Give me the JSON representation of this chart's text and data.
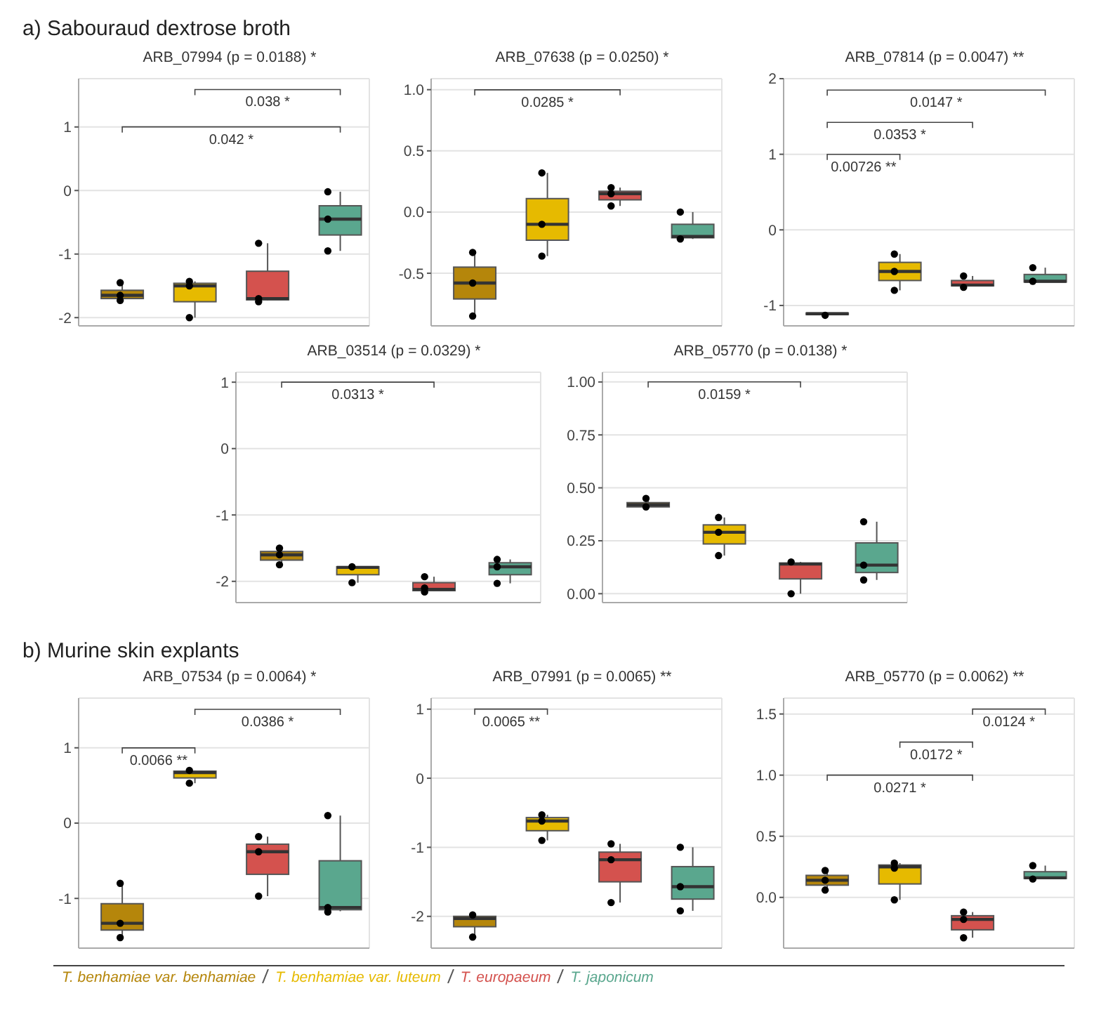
{
  "chart_data": [
    {
      "type": "box",
      "subtitle": "a) Sabouraud dextrose broth",
      "title": "ARB_07994 (p = 0.0188) *",
      "categories": [
        null,
        null,
        null,
        null
      ],
      "tick_labels": "y",
      "grid": true,
      "ylim": [
        -2.13,
        1.76
      ],
      "yticks": [
        -2,
        -1,
        0,
        1
      ],
      "series": [
        {
          "type": "box",
          "color": "#b5860b",
          "boxes": [
            {
              "low": -1.73,
              "q1": -1.7,
              "median": -1.65,
              "q3": -1.57,
              "high": -1.45
            },
            null,
            null,
            null
          ]
        },
        {
          "type": "box",
          "color": "#e6ba00",
          "boxes": [
            null,
            {
              "low": -2.0,
              "q1": -1.75,
              "median": -1.5,
              "q3": -1.46,
              "high": -1.43
            },
            null,
            null
          ]
        },
        {
          "type": "box",
          "color": "#d4524e",
          "boxes": [
            null,
            null,
            {
              "low": -1.73,
              "q1": -1.72,
              "median": -1.7,
              "q3": -1.27,
              "high": -0.83
            },
            null
          ]
        },
        {
          "type": "box",
          "color": "#5aa78e",
          "boxes": [
            null,
            null,
            null,
            {
              "low": -0.95,
              "q1": -0.7,
              "median": -0.45,
              "q3": -0.24,
              "high": -0.02
            }
          ]
        },
        {
          "type": "scatter",
          "color": "#000000",
          "marker": "circle",
          "values": [
            -1.45,
            -1.43,
            -0.83,
            -0.02
          ]
        },
        {
          "type": "scatter",
          "color": "#000000",
          "marker": "circle",
          "values": [
            -1.65,
            -1.5,
            -1.7,
            -0.45
          ]
        },
        {
          "type": "scatter",
          "color": "#000000",
          "marker": "circle",
          "values": [
            -1.73,
            -2.0,
            -1.75,
            -0.95
          ]
        }
      ],
      "annotations": [
        "0.038 *",
        "0.042 *"
      ]
    },
    {
      "type": "box",
      "title": "ARB_07638 (p = 0.0250) *",
      "categories": [
        null,
        null,
        null,
        null
      ],
      "tick_labels": "y",
      "grid": true,
      "ylim": [
        -0.93,
        1.09
      ],
      "yticks": [
        -0.5,
        {
          "value": 0,
          "label": "0.0"
        },
        0.5,
        {
          "value": 1,
          "label": "1.0"
        }
      ],
      "series": [
        {
          "type": "box",
          "color": "#b5860b",
          "boxes": [
            {
              "low": -0.85,
              "q1": -0.71,
              "median": -0.58,
              "q3": -0.45,
              "high": -0.33
            },
            null,
            null,
            null
          ]
        },
        {
          "type": "box",
          "color": "#e6ba00",
          "boxes": [
            null,
            {
              "low": -0.36,
              "q1": -0.23,
              "median": -0.1,
              "q3": 0.11,
              "high": 0.32
            },
            null,
            null
          ]
        },
        {
          "type": "box",
          "color": "#d4524e",
          "boxes": [
            null,
            null,
            {
              "low": 0.05,
              "q1": 0.1,
              "median": 0.15,
              "q3": 0.17,
              "high": 0.2
            },
            null
          ]
        },
        {
          "type": "box",
          "color": "#5aa78e",
          "boxes": [
            null,
            null,
            null,
            {
              "low": -0.22,
              "q1": -0.21,
              "median": -0.2,
              "q3": -0.1,
              "high": 0
            }
          ]
        },
        {
          "type": "scatter",
          "color": "#000000",
          "marker": "circle",
          "values": [
            -0.33,
            0.32,
            0.2,
            0
          ]
        },
        {
          "type": "scatter",
          "color": "#000000",
          "marker": "circle",
          "values": [
            -0.58,
            -0.1,
            0.15,
            null
          ]
        },
        {
          "type": "scatter",
          "color": "#000000",
          "marker": "circle",
          "values": [
            -0.85,
            -0.36,
            0.05,
            -0.22
          ]
        }
      ],
      "annotations": [
        "0.0285 *"
      ]
    },
    {
      "type": "box",
      "title": "ARB_07814 (p = 0.0047) **",
      "categories": [
        null,
        null,
        null,
        null
      ],
      "tick_labels": "y",
      "grid": true,
      "ylim": [
        -1.27,
        2.0
      ],
      "yticks": [
        -1,
        0,
        1,
        2
      ],
      "series": [
        {
          "type": "box",
          "color": "#b5860b",
          "boxes": [
            {
              "low": -1.12,
              "q1": -1.12,
              "median": -1.11,
              "q3": -1.1,
              "high": -1.1
            },
            null,
            null,
            null
          ]
        },
        {
          "type": "box",
          "color": "#e6ba00",
          "boxes": [
            null,
            {
              "low": -0.8,
              "q1": -0.67,
              "median": -0.55,
              "q3": -0.43,
              "high": -0.32
            },
            null,
            null
          ]
        },
        {
          "type": "box",
          "color": "#d4524e",
          "boxes": [
            null,
            null,
            {
              "low": -0.75,
              "q1": -0.74,
              "median": -0.73,
              "q3": -0.67,
              "high": -0.61
            },
            null
          ]
        },
        {
          "type": "box",
          "color": "#5aa78e",
          "boxes": [
            null,
            null,
            null,
            {
              "low": -0.69,
              "q1": -0.69,
              "median": -0.68,
              "q3": -0.59,
              "high": -0.5
            }
          ]
        },
        {
          "type": "scatter",
          "color": "#000000",
          "marker": "circle",
          "values": [
            null,
            -0.32,
            -0.61,
            -0.5
          ]
        },
        {
          "type": "scatter",
          "color": "#000000",
          "marker": "circle",
          "values": [
            null,
            -0.55,
            null,
            -0.68
          ]
        },
        {
          "type": "scatter",
          "color": "#000000",
          "marker": "circle",
          "values": [
            -1.13,
            -0.8,
            -0.76,
            null
          ]
        }
      ],
      "annotations": [
        "0.0147 *",
        "0.0353 *",
        "0.00726 **"
      ]
    },
    {
      "type": "box",
      "title": "ARB_03514 (p = 0.0329) *",
      "categories": [
        null,
        null,
        null,
        null
      ],
      "tick_labels": "y",
      "grid": true,
      "ylim": [
        -2.32,
        1.15
      ],
      "yticks": [
        -2,
        -1,
        0,
        1
      ],
      "series": [
        {
          "type": "box",
          "color": "#b5860b",
          "boxes": [
            {
              "low": -1.75,
              "q1": -1.68,
              "median": -1.6,
              "q3": -1.55,
              "high": -1.5
            },
            null,
            null,
            null
          ]
        },
        {
          "type": "box",
          "color": "#e6ba00",
          "boxes": [
            null,
            {
              "low": -2.02,
              "q1": -1.9,
              "median": -1.79,
              "q3": -1.78,
              "high": -1.78
            },
            null,
            null
          ]
        },
        {
          "type": "box",
          "color": "#d4524e",
          "boxes": [
            null,
            null,
            {
              "low": -2.15,
              "q1": -2.14,
              "median": -2.12,
              "q3": -2.02,
              "high": -1.93
            },
            null
          ]
        },
        {
          "type": "box",
          "color": "#5aa78e",
          "boxes": [
            null,
            null,
            null,
            {
              "low": -2.03,
              "q1": -1.9,
              "median": -1.78,
              "q3": -1.72,
              "high": -1.67
            }
          ]
        },
        {
          "type": "scatter",
          "color": "#000000",
          "marker": "circle",
          "values": [
            -1.5,
            -1.78,
            -1.93,
            -1.67
          ]
        },
        {
          "type": "scatter",
          "color": "#000000",
          "marker": "circle",
          "values": [
            -1.6,
            null,
            -2.1,
            -1.78
          ]
        },
        {
          "type": "scatter",
          "color": "#000000",
          "marker": "circle",
          "values": [
            -1.75,
            -2.02,
            -2.16,
            -2.03
          ]
        }
      ],
      "annotations": [
        "0.0313 *"
      ]
    },
    {
      "type": "box",
      "title": "ARB_05770 (p = 0.0138) *",
      "categories": [
        null,
        null,
        null,
        null
      ],
      "tick_labels": "y",
      "grid": true,
      "ylim": [
        -0.042,
        1.046
      ],
      "yticks": [
        {
          "value": 0,
          "label": "0.00"
        },
        0.25,
        {
          "value": 0.5,
          "label": "0.50"
        },
        0.75,
        {
          "value": 1,
          "label": "1.00"
        }
      ],
      "series": [
        {
          "type": "box",
          "color": "#b5860b",
          "boxes": [
            {
              "low": 0.41,
              "q1": 0.41,
              "median": 0.42,
              "q3": 0.43,
              "high": 0.45
            },
            null,
            null,
            null
          ]
        },
        {
          "type": "box",
          "color": "#e6ba00",
          "boxes": [
            null,
            {
              "low": 0.18,
              "q1": 0.235,
              "median": 0.29,
              "q3": 0.325,
              "high": 0.36
            },
            null,
            null
          ]
        },
        {
          "type": "box",
          "color": "#d4524e",
          "boxes": [
            null,
            null,
            {
              "low": 0,
              "q1": 0.07,
              "median": 0.14,
              "q3": 0.145,
              "high": 0.15
            },
            null
          ]
        },
        {
          "type": "box",
          "color": "#5aa78e",
          "boxes": [
            null,
            null,
            null,
            {
              "low": 0.065,
              "q1": 0.1,
              "median": 0.135,
              "q3": 0.24,
              "high": 0.34
            }
          ]
        },
        {
          "type": "scatter",
          "color": "#000000",
          "marker": "circle",
          "values": [
            0.45,
            0.36,
            0.15,
            0.34
          ]
        },
        {
          "type": "scatter",
          "color": "#000000",
          "marker": "circle",
          "values": [
            null,
            0.29,
            null,
            0.135
          ]
        },
        {
          "type": "scatter",
          "color": "#000000",
          "marker": "circle",
          "values": [
            0.41,
            0.18,
            0,
            0.065
          ]
        }
      ],
      "annotations": [
        "0.0159 *"
      ]
    },
    {
      "type": "box",
      "subtitle": "b) Murine skin explants",
      "title": "ARB_07534 (p = 0.0064) *",
      "categories": [
        null,
        null,
        null,
        null
      ],
      "tick_labels": "y",
      "grid": true,
      "ylim": [
        -1.66,
        1.66
      ],
      "yticks": [
        -1,
        0,
        1
      ],
      "series": [
        {
          "type": "box",
          "color": "#b5860b",
          "boxes": [
            {
              "low": -1.52,
              "q1": -1.42,
              "median": -1.33,
              "q3": -1.07,
              "high": -0.8
            },
            null,
            null,
            null
          ]
        },
        {
          "type": "box",
          "color": "#e6ba00",
          "boxes": [
            null,
            {
              "low": 0.53,
              "q1": 0.6,
              "median": 0.67,
              "q3": 0.69,
              "high": 0.7
            },
            null,
            null
          ]
        },
        {
          "type": "box",
          "color": "#d4524e",
          "boxes": [
            null,
            null,
            {
              "low": -0.97,
              "q1": -0.68,
              "median": -0.38,
              "q3": -0.28,
              "high": -0.18
            },
            null
          ]
        },
        {
          "type": "box",
          "color": "#5aa78e",
          "boxes": [
            null,
            null,
            null,
            {
              "low": -1.17,
              "q1": -1.15,
              "median": -1.12,
              "q3": -0.5,
              "high": 0.1
            }
          ]
        },
        {
          "type": "scatter",
          "color": "#000000",
          "marker": "circle",
          "values": [
            -0.8,
            0.7,
            -0.18,
            0.1
          ]
        },
        {
          "type": "scatter",
          "color": "#000000",
          "marker": "circle",
          "values": [
            -1.33,
            null,
            -0.38,
            -1.12
          ]
        },
        {
          "type": "scatter",
          "color": "#000000",
          "marker": "circle",
          "values": [
            -1.52,
            0.53,
            -0.97,
            -1.18
          ]
        }
      ],
      "annotations": [
        "0.0386 *",
        "0.0066 **"
      ]
    },
    {
      "type": "box",
      "title": "ARB_07991 (p = 0.0065) **",
      "categories": [
        null,
        null,
        null,
        null
      ],
      "tick_labels": "y",
      "grid": true,
      "ylim": [
        -2.46,
        1.16
      ],
      "yticks": [
        -2,
        -1,
        0,
        1
      ],
      "series": [
        {
          "type": "box",
          "color": "#b5860b",
          "boxes": [
            {
              "low": -2.3,
              "q1": -2.15,
              "median": -2.03,
              "q3": -2.0,
              "high": -1.98
            },
            null,
            null,
            null
          ]
        },
        {
          "type": "box",
          "color": "#e6ba00",
          "boxes": [
            null,
            {
              "low": -0.9,
              "q1": -0.76,
              "median": -0.62,
              "q3": -0.57,
              "high": -0.53
            },
            null,
            null
          ]
        },
        {
          "type": "box",
          "color": "#d4524e",
          "boxes": [
            null,
            null,
            {
              "low": -1.8,
              "q1": -1.5,
              "median": -1.18,
              "q3": -1.07,
              "high": -0.95
            },
            null
          ]
        },
        {
          "type": "box",
          "color": "#5aa78e",
          "boxes": [
            null,
            null,
            null,
            {
              "low": -1.92,
              "q1": -1.75,
              "median": -1.57,
              "q3": -1.28,
              "high": -1.0
            }
          ]
        },
        {
          "type": "scatter",
          "color": "#000000",
          "marker": "circle",
          "values": [
            -1.98,
            -0.53,
            -0.95,
            -1.0
          ]
        },
        {
          "type": "scatter",
          "color": "#000000",
          "marker": "circle",
          "values": [
            null,
            -0.62,
            -1.18,
            -1.57
          ]
        },
        {
          "type": "scatter",
          "color": "#000000",
          "marker": "circle",
          "values": [
            -2.3,
            -0.9,
            -1.8,
            -1.92
          ]
        }
      ],
      "annotations": [
        "0.0065 **"
      ]
    },
    {
      "type": "box",
      "title": "ARB_05770 (p = 0.0062) **",
      "categories": [
        null,
        null,
        null,
        null
      ],
      "tick_labels": "y",
      "grid": true,
      "legend": "bottom",
      "ylim": [
        -0.415,
        1.63
      ],
      "yticks": [
        {
          "value": 0,
          "label": "0.0"
        },
        0.5,
        {
          "value": 1,
          "label": "1.0"
        },
        1.5
      ],
      "series": [
        {
          "type": "box",
          "name": "T. benhamiae var. benhamiae",
          "color": "#b5860b",
          "boxes": [
            {
              "low": 0.06,
              "q1": 0.1,
              "median": 0.14,
              "q3": 0.18,
              "high": 0.22
            },
            null,
            null,
            null
          ]
        },
        {
          "type": "box",
          "name": "T. benhamiae var. luteum",
          "color": "#e6ba00",
          "boxes": [
            null,
            {
              "low": -0.02,
              "q1": 0.11,
              "median": 0.25,
              "q3": 0.265,
              "high": 0.28
            },
            null,
            null
          ]
        },
        {
          "type": "box",
          "name": "T. europaeum",
          "color": "#d4524e",
          "boxes": [
            null,
            null,
            {
              "low": -0.33,
              "q1": -0.265,
              "median": -0.18,
              "q3": -0.15,
              "high": -0.12
            },
            null
          ]
        },
        {
          "type": "box",
          "name": "T. japonicum",
          "color": "#5aa78e",
          "boxes": [
            null,
            null,
            null,
            {
              "low": 0.15,
              "q1": 0.155,
              "median": 0.16,
              "q3": 0.21,
              "high": 0.26
            }
          ]
        },
        {
          "type": "scatter",
          "color": "#000000",
          "marker": "circle",
          "values": [
            0.22,
            0.28,
            -0.12,
            0.26
          ]
        },
        {
          "type": "scatter",
          "color": "#000000",
          "marker": "circle",
          "values": [
            0.14,
            0.24,
            -0.18,
            null
          ]
        },
        {
          "type": "scatter",
          "color": "#000000",
          "marker": "circle",
          "values": [
            0.06,
            -0.02,
            -0.33,
            0.15
          ]
        }
      ],
      "annotations": [
        "0.0124 *",
        "0.0172 *",
        "0.0271 *"
      ]
    }
  ]
}
